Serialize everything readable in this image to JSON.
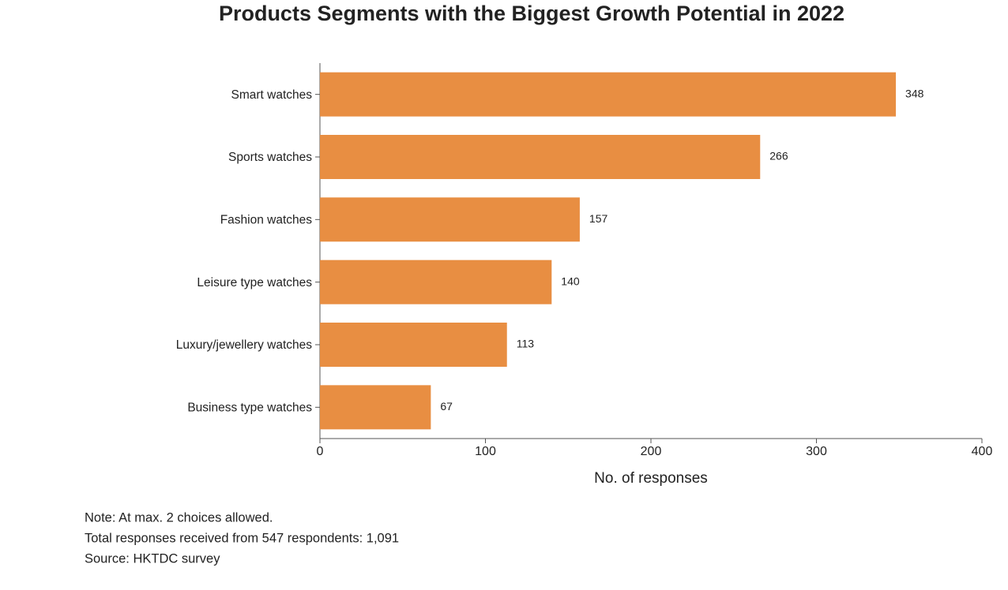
{
  "chart_data": {
    "type": "bar",
    "orientation": "horizontal",
    "title": "Products Segments with the Biggest Growth Potential in 2022",
    "categories": [
      "Smart watches",
      "Sports watches",
      "Fashion watches",
      "Leisure type watches",
      "Luxury/jewellery watches",
      "Business type watches"
    ],
    "values": [
      348,
      266,
      157,
      140,
      113,
      67
    ],
    "color": "#e88e42",
    "xlim": [
      0,
      400
    ],
    "xticks": [
      0,
      100,
      200,
      300,
      400
    ],
    "x_label": "No. of responses",
    "notes": [
      "Note: At max. 2 choices allowed.",
      "Total responses received from 547 respondents: 1,091",
      "Source: HKTDC survey"
    ]
  }
}
